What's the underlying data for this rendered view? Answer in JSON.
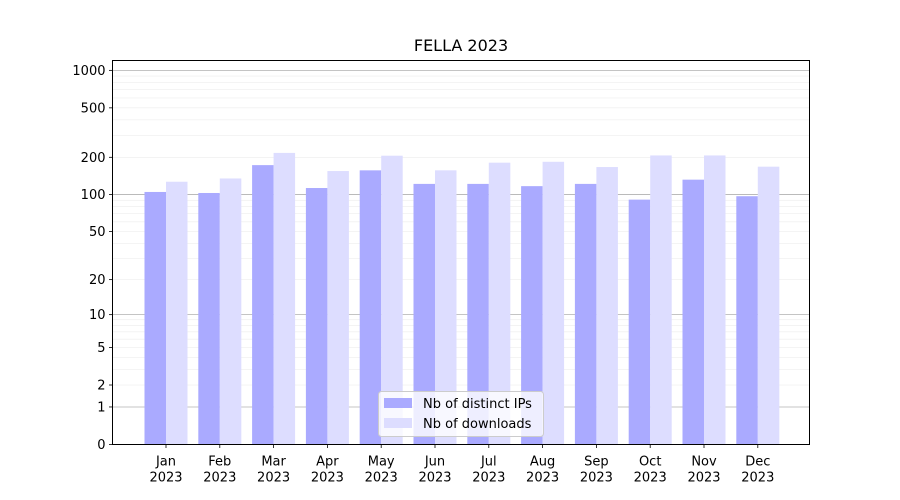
{
  "chart_data": {
    "type": "bar",
    "title": "FELLA 2023",
    "xlabel": "",
    "ylabel": "",
    "scale": "symlog",
    "grid": true,
    "legend_position": "bottom-center",
    "yticks": [
      "0",
      "1",
      "2",
      "5",
      "10",
      "20",
      "50",
      "100",
      "200",
      "500",
      "1000"
    ],
    "ylim": [
      0,
      1200
    ],
    "categories": [
      "Jan\n2023",
      "Feb\n2023",
      "Mar\n2023",
      "Apr\n2023",
      "May\n2023",
      "Jun\n2023",
      "Jul\n2023",
      "Aug\n2023",
      "Sep\n2023",
      "Oct\n2023",
      "Nov\n2023",
      "Dec\n2023"
    ],
    "series": [
      {
        "name": "Nb of distinct IPs",
        "color": "#aaaaff",
        "values": [
          105,
          103,
          173,
          113,
          157,
          122,
          122,
          117,
          122,
          91,
          132,
          97
        ]
      },
      {
        "name": "Nb of downloads",
        "color": "#ddddff",
        "values": [
          127,
          135,
          217,
          155,
          206,
          157,
          181,
          184,
          167,
          207,
          207,
          168
        ]
      }
    ]
  }
}
